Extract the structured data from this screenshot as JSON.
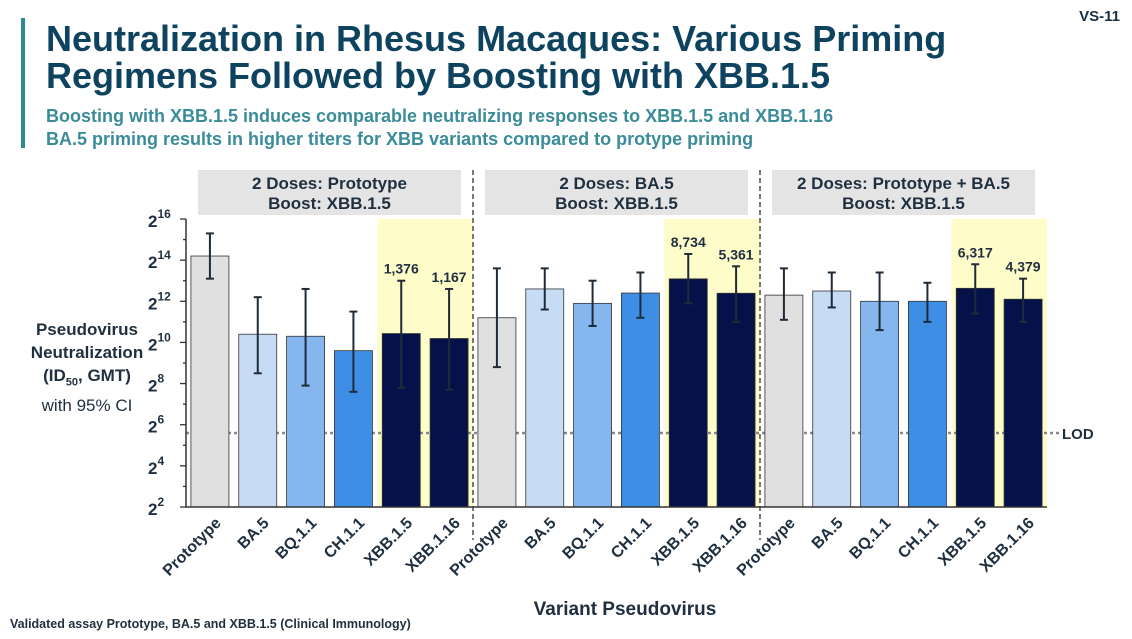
{
  "slide_id": "VS-11",
  "title": "Neutralization in Rhesus Macaques: Various Priming Regimens Followed by Boosting with XBB.1.5",
  "subtitles": [
    "Boosting with XBB.1.5 induces comparable neutralizing responses to XBB.1.5 and XBB.1.16",
    "BA.5 priming results in higher titers for XBB variants compared to protype priming"
  ],
  "y_axis_label": {
    "line1": "Pseudovirus",
    "line2": "Neutralization",
    "line3_open": "(ID",
    "line3_sub": "50",
    "line3_close": ", GMT)",
    "line4": "with 95% CI"
  },
  "x_axis_label": "Variant Pseudovirus",
  "footnote": "Validated assay Prototype, BA.5 and XBB.1.5 (Clinical Immunology)",
  "colors": {
    "Prototype": "#e0e0e0",
    "BA.5": "#c6dcf5",
    "BQ.1.1": "#85b6ee",
    "CH.1.1": "#3f8ee6",
    "XBB.1.5": "#05124a",
    "XBB.1.16": "#05124a",
    "highlight": "#fefcc9",
    "group_header": "#e4e4e4",
    "lod_line": "#888888"
  },
  "chart_data": {
    "type": "bar",
    "y_scale": "log2",
    "ylim_exponent": [
      2,
      16
    ],
    "y_ticks_exponent": [
      2,
      4,
      6,
      8,
      10,
      12,
      14,
      16
    ],
    "y_tick_base": "2",
    "lod_label": "LOD",
    "lod_exponent": 5.6,
    "groups": [
      {
        "header_line1": "2 Doses: Prototype",
        "header_line2": "Boost: XBB.1.5",
        "categories": [
          "Prototype",
          "BA.5",
          "BQ.1.1",
          "CH.1.1",
          "XBB.1.5",
          "XBB.1.16"
        ],
        "log2_values": [
          14.2,
          10.4,
          10.3,
          9.6,
          10.43,
          10.19
        ],
        "ci_low": [
          13.1,
          8.5,
          7.9,
          7.6,
          7.8,
          7.7
        ],
        "ci_high": [
          15.3,
          12.2,
          12.6,
          11.5,
          13.0,
          12.6
        ],
        "labels": [
          "",
          "",
          "",
          "",
          "1,376",
          "1,167"
        ]
      },
      {
        "header_line1": "2 Doses: BA.5",
        "header_line2": "Boost: XBB.1.5",
        "categories": [
          "Prototype",
          "BA.5",
          "BQ.1.1",
          "CH.1.1",
          "XBB.1.5",
          "XBB.1.16"
        ],
        "log2_values": [
          11.2,
          12.6,
          11.9,
          12.4,
          13.09,
          12.39
        ],
        "ci_low": [
          8.8,
          11.6,
          10.8,
          11.2,
          11.9,
          11.0
        ],
        "ci_high": [
          13.6,
          13.6,
          13.0,
          13.4,
          14.3,
          13.7
        ],
        "labels": [
          "",
          "",
          "",
          "",
          "8,734",
          "5,361"
        ]
      },
      {
        "header_line1": "2 Doses: Prototype + BA.5",
        "header_line2": "Boost: XBB.1.5",
        "categories": [
          "Prototype",
          "BA.5",
          "BQ.1.1",
          "CH.1.1",
          "XBB.1.5",
          "XBB.1.16"
        ],
        "log2_values": [
          12.3,
          12.5,
          12.0,
          12.0,
          12.63,
          12.1
        ],
        "ci_low": [
          11.1,
          11.7,
          10.6,
          11.0,
          11.4,
          11.0
        ],
        "ci_high": [
          13.6,
          13.4,
          13.4,
          12.9,
          13.8,
          13.1
        ],
        "labels": [
          "",
          "",
          "",
          "",
          "6,317",
          "4,379"
        ]
      }
    ]
  }
}
